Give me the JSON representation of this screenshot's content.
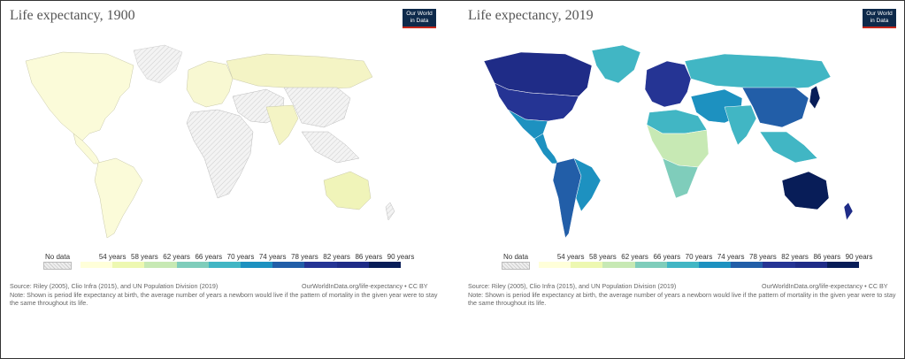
{
  "panels": [
    {
      "title": "Life expectancy, 1900",
      "logo": [
        "Our World",
        "in Data"
      ],
      "legend": {
        "no_data_label": "No data",
        "ticks": [
          "54 years",
          "58 years",
          "62 years",
          "66 years",
          "70 years",
          "74 years",
          "78 years",
          "82 years",
          "86 years",
          "90 years"
        ]
      },
      "source": "Source: Riley (2005), Clio Infra (2015), and UN Population Division (2019)",
      "url": "OurWorldInData.org/life-expectancy • CC BY",
      "note": "Note: Shown is period life expectancy at birth, the average number of years a newborn would live if the pattern of mortality in the given year were to stay the same throughout its life."
    },
    {
      "title": "Life expectancy, 2019",
      "logo": [
        "Our World",
        "in Data"
      ],
      "legend": {
        "no_data_label": "No data",
        "ticks": [
          "54 years",
          "58 years",
          "62 years",
          "66 years",
          "70 years",
          "74 years",
          "78 years",
          "82 years",
          "86 years",
          "90 years"
        ]
      },
      "source": "Source: Riley (2005), Clio Infra (2015), and UN Population Division (2019)",
      "url": "OurWorldInData.org/life-expectancy • CC BY",
      "note": "Note: Shown is period life expectancy at birth, the average number of years a newborn would live if the pattern of mortality in the given year were to stay the same throughout its life."
    }
  ],
  "colors": {
    "scale": [
      "#ffffd9",
      "#edf8b1",
      "#c7e9b4",
      "#7fcdbb",
      "#41b6c4",
      "#1d91c0",
      "#225ea8",
      "#253494",
      "#1f2c87",
      "#081d58"
    ],
    "no_data": "#e0e0e0",
    "frame": "#333333",
    "logo_bg": "#0e2a4b",
    "logo_bar": "#c4271b"
  },
  "map_1900": {
    "no_data": "#ececec",
    "north_america": "#fbfbd9",
    "south_america": "#fbfbd9",
    "europe": "#f8f8d2",
    "africa": "#ececec",
    "asia": "#ececec",
    "india": "#f4f4c5",
    "russia": "#f4f4c5",
    "australia": "#f0f4b9"
  },
  "map_2019": {
    "canada": "#1f2c87",
    "usa": "#253494",
    "greenland": "#41b6c4",
    "mexico": "#1d91c0",
    "central_america": "#1d91c0",
    "south_america": "#225ea8",
    "brazil": "#1d91c0",
    "europe": "#253494",
    "russia": "#41b6c4",
    "north_africa": "#41b6c4",
    "central_africa": "#c7e9b4",
    "east_africa": "#7fcdbb",
    "southern_africa": "#7fcdbb",
    "middle_east": "#1d91c0",
    "central_asia": "#41b6c4",
    "india": "#41b6c4",
    "china": "#225ea8",
    "japan": "#081d58",
    "southeast_asia": "#41b6c4",
    "australia": "#081d58",
    "new_zealand": "#1f2c87"
  }
}
